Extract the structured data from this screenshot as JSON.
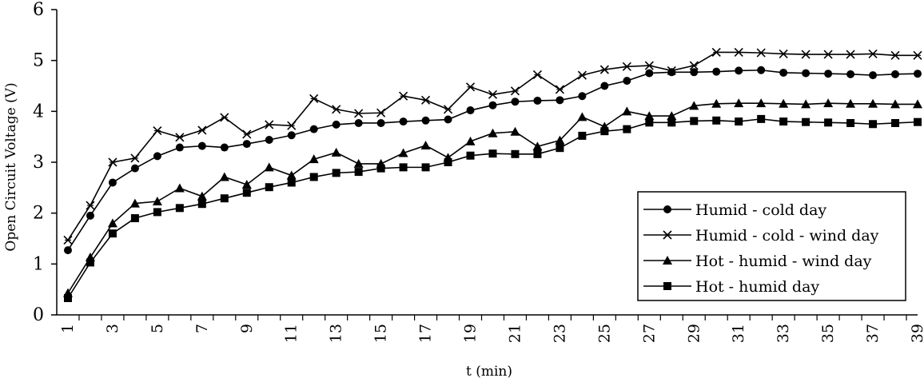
{
  "chart_data": {
    "type": "line",
    "xlabel": "t (min)",
    "ylabel": "Open Circuit Voltage (V)",
    "ylim": [
      0,
      6
    ],
    "yticks": [
      0,
      1,
      2,
      3,
      4,
      5,
      6
    ],
    "xlim": [
      1,
      39
    ],
    "xticks": [
      1,
      3,
      5,
      7,
      9,
      11,
      13,
      15,
      17,
      19,
      21,
      23,
      25,
      27,
      29,
      31,
      33,
      35,
      37,
      39
    ],
    "grid": false,
    "legend_position": "bottom-right",
    "x": [
      1,
      2,
      3,
      4,
      5,
      6,
      7,
      8,
      9,
      10,
      11,
      12,
      13,
      14,
      15,
      16,
      17,
      18,
      19,
      20,
      21,
      22,
      23,
      24,
      25,
      26,
      27,
      28,
      29,
      30,
      31,
      32,
      33,
      34,
      35,
      36,
      37,
      38,
      39
    ],
    "series": [
      {
        "name": "Humid - cold day",
        "marker": "circle",
        "values": [
          1.27,
          1.95,
          2.6,
          2.88,
          3.12,
          3.29,
          3.32,
          3.29,
          3.36,
          3.44,
          3.53,
          3.65,
          3.74,
          3.77,
          3.77,
          3.8,
          3.82,
          3.84,
          4.02,
          4.12,
          4.19,
          4.21,
          4.22,
          4.3,
          4.5,
          4.6,
          4.75,
          4.77,
          4.77,
          4.78,
          4.8,
          4.81,
          4.76,
          4.75,
          4.74,
          4.73,
          4.71,
          4.73,
          4.74
        ]
      },
      {
        "name": "Humid - cold - wind day",
        "marker": "x",
        "values": [
          1.47,
          2.15,
          3.0,
          3.08,
          3.62,
          3.49,
          3.63,
          3.88,
          3.55,
          3.74,
          3.72,
          4.25,
          4.04,
          3.96,
          3.97,
          4.3,
          4.22,
          4.04,
          4.48,
          4.33,
          4.4,
          4.72,
          4.43,
          4.71,
          4.82,
          4.88,
          4.9,
          4.8,
          4.9,
          5.16,
          5.16,
          5.15,
          5.13,
          5.12,
          5.12,
          5.12,
          5.13,
          5.1,
          5.1
        ]
      },
      {
        "name": "Hot - humid - wind day",
        "marker": "triangle",
        "values": [
          0.43,
          1.13,
          1.8,
          2.19,
          2.23,
          2.49,
          2.33,
          2.71,
          2.56,
          2.9,
          2.74,
          3.06,
          3.19,
          2.97,
          2.97,
          3.18,
          3.33,
          3.09,
          3.41,
          3.57,
          3.6,
          3.31,
          3.43,
          3.89,
          3.7,
          4.0,
          3.91,
          3.91,
          4.11,
          4.15,
          4.16,
          4.16,
          4.15,
          4.14,
          4.16,
          4.15,
          4.15,
          4.14,
          4.14
        ]
      },
      {
        "name": "Hot - humid day",
        "marker": "square",
        "values": [
          0.33,
          1.03,
          1.6,
          1.9,
          2.02,
          2.1,
          2.18,
          2.29,
          2.4,
          2.51,
          2.6,
          2.71,
          2.79,
          2.81,
          2.88,
          2.9,
          2.9,
          3.0,
          3.13,
          3.17,
          3.16,
          3.16,
          3.28,
          3.52,
          3.61,
          3.65,
          3.78,
          3.78,
          3.81,
          3.82,
          3.8,
          3.85,
          3.8,
          3.79,
          3.78,
          3.77,
          3.75,
          3.77,
          3.79
        ]
      }
    ]
  }
}
